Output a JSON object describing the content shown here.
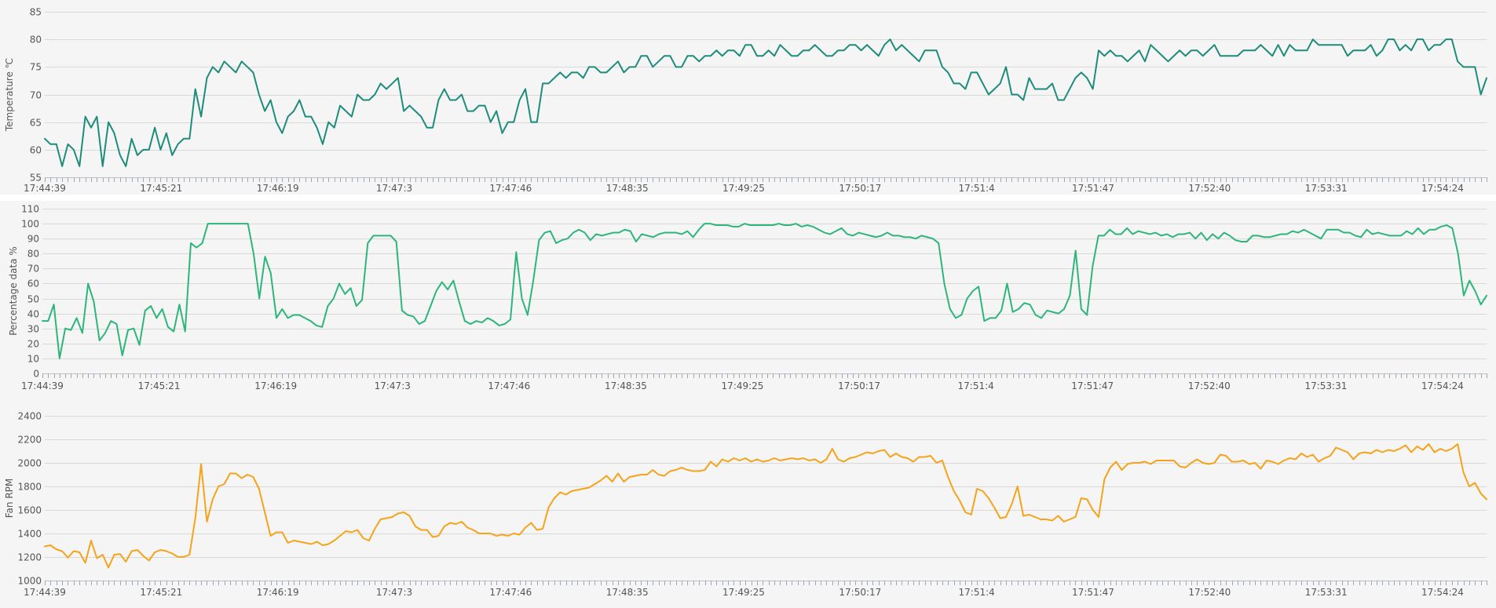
{
  "chart_data": [
    {
      "type": "line",
      "title": "",
      "xlabel": "",
      "ylabel": "Temperature ℃",
      "ylim": [
        55,
        85
      ],
      "yticks": [
        55,
        60,
        65,
        70,
        75,
        80,
        85
      ],
      "grid": true,
      "color": "#1e8c7a",
      "x_tick_labels": [
        "17:44:39",
        "17:45:21",
        "17:46:19",
        "17:47:3",
        "17:47:46",
        "17:48:35",
        "17:49:25",
        "17:50:17",
        "17:51:4",
        "17:51:47",
        "17:52:40",
        "17:53:31",
        "17:54:24"
      ],
      "series": [
        {
          "values": [
            62,
            61,
            61,
            57,
            61,
            60,
            57,
            66,
            64,
            66,
            57,
            65,
            63,
            59,
            57,
            62,
            59,
            60,
            60,
            64,
            60,
            63,
            59,
            61,
            62,
            62,
            71,
            66,
            73,
            75,
            74,
            76,
            75,
            74,
            76,
            75,
            74,
            70,
            67,
            69,
            65,
            63,
            66,
            67,
            69,
            66,
            66,
            64,
            61,
            65,
            64,
            68,
            67,
            66,
            70,
            69,
            69,
            70,
            72,
            71,
            72,
            73,
            67,
            68,
            67,
            66,
            64,
            64,
            69,
            71,
            69,
            69,
            70,
            67,
            67,
            68,
            68,
            65,
            67,
            63,
            65,
            65,
            69,
            71,
            65,
            65,
            72,
            72,
            73,
            74,
            73,
            74,
            74,
            73,
            75,
            75,
            74,
            74,
            75,
            76,
            74,
            75,
            75,
            77,
            77,
            75,
            76,
            77,
            77,
            75,
            75,
            77,
            77,
            76,
            77,
            77,
            78,
            77,
            78,
            78,
            77,
            79,
            79,
            77,
            77,
            78,
            77,
            79,
            78,
            77,
            77,
            78,
            78,
            79,
            78,
            77,
            77,
            78,
            78,
            79,
            79,
            78,
            79,
            78,
            77,
            79,
            80,
            78,
            79,
            78,
            77,
            76,
            78,
            78,
            78,
            75,
            74,
            72,
            72,
            71,
            74,
            74,
            72,
            70,
            71,
            72,
            75,
            70,
            70,
            69,
            73,
            71,
            71,
            71,
            72,
            69,
            69,
            71,
            73,
            74,
            73,
            71,
            78,
            77,
            78,
            77,
            77,
            76,
            77,
            78,
            76,
            79,
            78,
            77,
            76,
            77,
            78,
            77,
            78,
            78,
            77,
            78,
            79,
            77,
            77,
            77,
            77,
            78,
            78,
            78,
            79,
            78,
            77,
            79,
            77,
            79,
            78,
            78,
            78,
            80,
            79,
            79,
            79,
            79,
            79,
            77,
            78,
            78,
            78,
            79,
            77,
            78,
            80,
            80,
            78,
            79,
            78,
            80,
            80,
            78,
            79,
            79,
            80,
            80,
            76,
            75,
            75,
            75,
            70,
            73
          ]
        }
      ]
    },
    {
      "type": "line",
      "title": "",
      "xlabel": "",
      "ylabel": "Percentage data %",
      "ylim": [
        0,
        110
      ],
      "yticks": [
        0,
        10,
        20,
        30,
        40,
        50,
        60,
        70,
        80,
        90,
        100,
        110
      ],
      "grid": true,
      "color": "#2db57b",
      "x_tick_labels": [
        "17:44:39",
        "17:45:21",
        "17:46:19",
        "17:47:3",
        "17:47:46",
        "17:48:35",
        "17:49:25",
        "17:50:17",
        "17:51:4",
        "17:51:47",
        "17:52:40",
        "17:53:31",
        "17:54:24"
      ],
      "series": [
        {
          "values": [
            35,
            35,
            46,
            10,
            30,
            29,
            37,
            27,
            60,
            48,
            22,
            27,
            35,
            33,
            12,
            29,
            30,
            19,
            42,
            45,
            37,
            43,
            31,
            28,
            46,
            28,
            87,
            84,
            87,
            100,
            100,
            100,
            100,
            100,
            100,
            100,
            100,
            80,
            50,
            78,
            67,
            37,
            43,
            37,
            39,
            39,
            37,
            35,
            32,
            31,
            45,
            50,
            60,
            53,
            57,
            45,
            49,
            87,
            92,
            92,
            92,
            92,
            88,
            42,
            39,
            38,
            33,
            35,
            45,
            55,
            61,
            56,
            62,
            48,
            35,
            33,
            35,
            34,
            37,
            35,
            32,
            33,
            36,
            81,
            50,
            39,
            62,
            89,
            94,
            95,
            87,
            89,
            90,
            94,
            96,
            94,
            89,
            93,
            92,
            93,
            94,
            94,
            96,
            95,
            88,
            93,
            92,
            91,
            93,
            94,
            94,
            94,
            93,
            95,
            91,
            96,
            100,
            100,
            99,
            99,
            99,
            98,
            98,
            100,
            99,
            99,
            99,
            99,
            99,
            100,
            99,
            99,
            100,
            98,
            99,
            98,
            96,
            94,
            93,
            95,
            97,
            93,
            92,
            94,
            93,
            92,
            91,
            92,
            94,
            92,
            92,
            91,
            91,
            90,
            92,
            91,
            90,
            87,
            60,
            43,
            37,
            39,
            50,
            55,
            58,
            35,
            37,
            37,
            42,
            60,
            41,
            43,
            47,
            46,
            39,
            37,
            42,
            41,
            40,
            43,
            52,
            82,
            43,
            39,
            72,
            92,
            92,
            96,
            93,
            93,
            97,
            93,
            95,
            94,
            93,
            94,
            92,
            93,
            91,
            93,
            93,
            94,
            90,
            94,
            89,
            93,
            90,
            94,
            92,
            89,
            88,
            88,
            92,
            92,
            91,
            91,
            92,
            93,
            93,
            95,
            94,
            96,
            94,
            92,
            90,
            96,
            96,
            96,
            94,
            94,
            92,
            91,
            96,
            93,
            94,
            93,
            92,
            92,
            92,
            95,
            93,
            97,
            93,
            96,
            96,
            98,
            99,
            97,
            80,
            52,
            62,
            55,
            46,
            52
          ]
        }
      ]
    },
    {
      "type": "line",
      "title": "",
      "xlabel": "",
      "ylabel": "Fan RPM",
      "ylim": [
        1000,
        2400
      ],
      "yticks": [
        1000,
        1200,
        1400,
        1600,
        1800,
        2000,
        2200,
        2400
      ],
      "grid": true,
      "color": "#f5a31a",
      "x_tick_labels": [
        "17:44:39",
        "17:45:21",
        "17:46:19",
        "17:47:3",
        "17:47:46",
        "17:48:35",
        "17:49:25",
        "17:50:17",
        "17:51:4",
        "17:51:47",
        "17:52:40",
        "17:53:31",
        "17:54:24"
      ],
      "series": [
        {
          "values": [
            1290,
            1300,
            1265,
            1250,
            1195,
            1250,
            1240,
            1150,
            1340,
            1190,
            1220,
            1110,
            1220,
            1225,
            1160,
            1250,
            1260,
            1210,
            1170,
            1240,
            1260,
            1250,
            1230,
            1200,
            1200,
            1220,
            1530,
            1990,
            1500,
            1690,
            1800,
            1820,
            1910,
            1910,
            1870,
            1900,
            1880,
            1780,
            1580,
            1380,
            1410,
            1410,
            1320,
            1340,
            1330,
            1320,
            1310,
            1330,
            1300,
            1310,
            1340,
            1380,
            1420,
            1410,
            1430,
            1360,
            1340,
            1440,
            1520,
            1530,
            1540,
            1570,
            1580,
            1550,
            1460,
            1430,
            1430,
            1370,
            1380,
            1460,
            1490,
            1480,
            1500,
            1450,
            1430,
            1400,
            1400,
            1400,
            1380,
            1390,
            1380,
            1400,
            1390,
            1450,
            1490,
            1430,
            1440,
            1620,
            1700,
            1750,
            1730,
            1760,
            1770,
            1780,
            1790,
            1820,
            1850,
            1890,
            1840,
            1910,
            1840,
            1880,
            1890,
            1900,
            1900,
            1940,
            1900,
            1890,
            1930,
            1940,
            1960,
            1940,
            1930,
            1930,
            1940,
            2010,
            1970,
            2030,
            2010,
            2040,
            2020,
            2040,
            2010,
            2030,
            2010,
            2020,
            2040,
            2020,
            2030,
            2040,
            2030,
            2040,
            2020,
            2030,
            2000,
            2030,
            2120,
            2030,
            2010,
            2040,
            2050,
            2070,
            2090,
            2080,
            2100,
            2110,
            2050,
            2080,
            2050,
            2040,
            2010,
            2050,
            2050,
            2060,
            2000,
            2020,
            1880,
            1760,
            1680,
            1580,
            1560,
            1780,
            1760,
            1700,
            1620,
            1530,
            1540,
            1650,
            1800,
            1550,
            1560,
            1540,
            1520,
            1520,
            1510,
            1550,
            1500,
            1520,
            1540,
            1700,
            1690,
            1600,
            1540,
            1860,
            1960,
            2010,
            1940,
            1990,
            2000,
            2000,
            2010,
            1990,
            2020,
            2020,
            2020,
            2020,
            1970,
            1960,
            2000,
            2030,
            2000,
            1990,
            2000,
            2070,
            2060,
            2010,
            2010,
            2020,
            1990,
            2000,
            1950,
            2020,
            2010,
            1990,
            2020,
            2040,
            2030,
            2080,
            2050,
            2070,
            2010,
            2040,
            2060,
            2130,
            2110,
            2090,
            2030,
            2080,
            2090,
            2080,
            2110,
            2090,
            2110,
            2100,
            2120,
            2150,
            2090,
            2140,
            2110,
            2160,
            2090,
            2120,
            2100,
            2120,
            2160,
            1920,
            1800,
            1830,
            1740,
            1690
          ]
        }
      ]
    }
  ]
}
